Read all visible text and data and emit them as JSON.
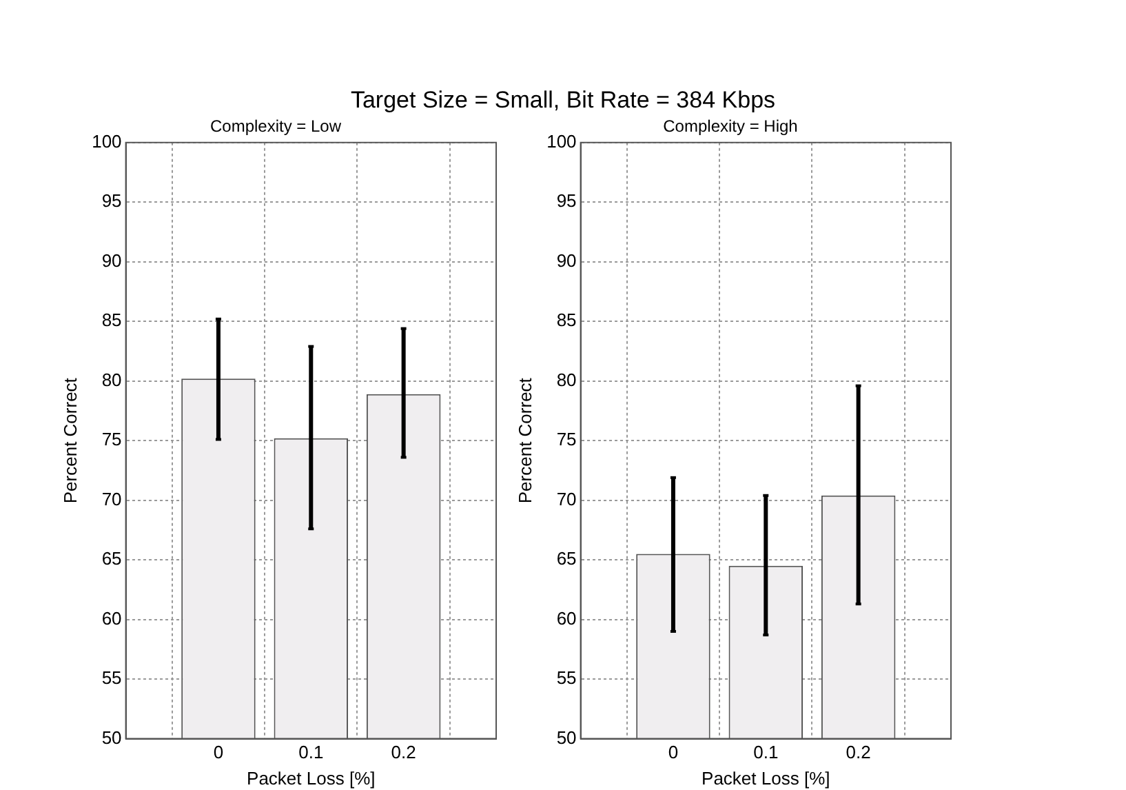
{
  "chart_data": [
    {
      "type": "bar",
      "title": "Complexity = Low",
      "annotations": [
        "Target Size = Small, Bit Rate = 384 Kbps"
      ],
      "xlabel": "Packet Loss [%]",
      "ylabel": "Percent Correct",
      "x": [
        0,
        0.1,
        0.2
      ],
      "xlim": [
        -0.1,
        0.3
      ],
      "xticks": [
        0,
        0.1,
        0.2
      ],
      "ylim": [
        50,
        100
      ],
      "yticks": [
        50,
        55,
        60,
        65,
        70,
        75,
        80,
        85,
        90,
        95,
        100
      ],
      "grid": true,
      "legend": false,
      "series": [
        {
          "color": "#f0eef0",
          "values": [
            80.2,
            75.2,
            78.9
          ],
          "errors": [
            [
              75.1,
              85.2
            ],
            [
              67.6,
              82.9
            ],
            [
              73.6,
              84.4
            ]
          ]
        }
      ]
    },
    {
      "type": "bar",
      "title": "Complexity = High",
      "xlabel": "Packet Loss [%]",
      "ylabel": "Percent Correct",
      "x": [
        0,
        0.1,
        0.2
      ],
      "xlim": [
        -0.1,
        0.3
      ],
      "xticks": [
        0,
        0.1,
        0.2
      ],
      "ylim": [
        50,
        100
      ],
      "yticks": [
        50,
        55,
        60,
        65,
        70,
        75,
        80,
        85,
        90,
        95,
        100
      ],
      "grid": true,
      "legend": false,
      "series": [
        {
          "color": "#f0eef0",
          "values": [
            65.5,
            64.5,
            70.4
          ],
          "errors": [
            [
              59.0,
              71.9
            ],
            [
              58.7,
              70.4
            ],
            [
              61.3,
              79.6
            ]
          ]
        }
      ]
    }
  ]
}
